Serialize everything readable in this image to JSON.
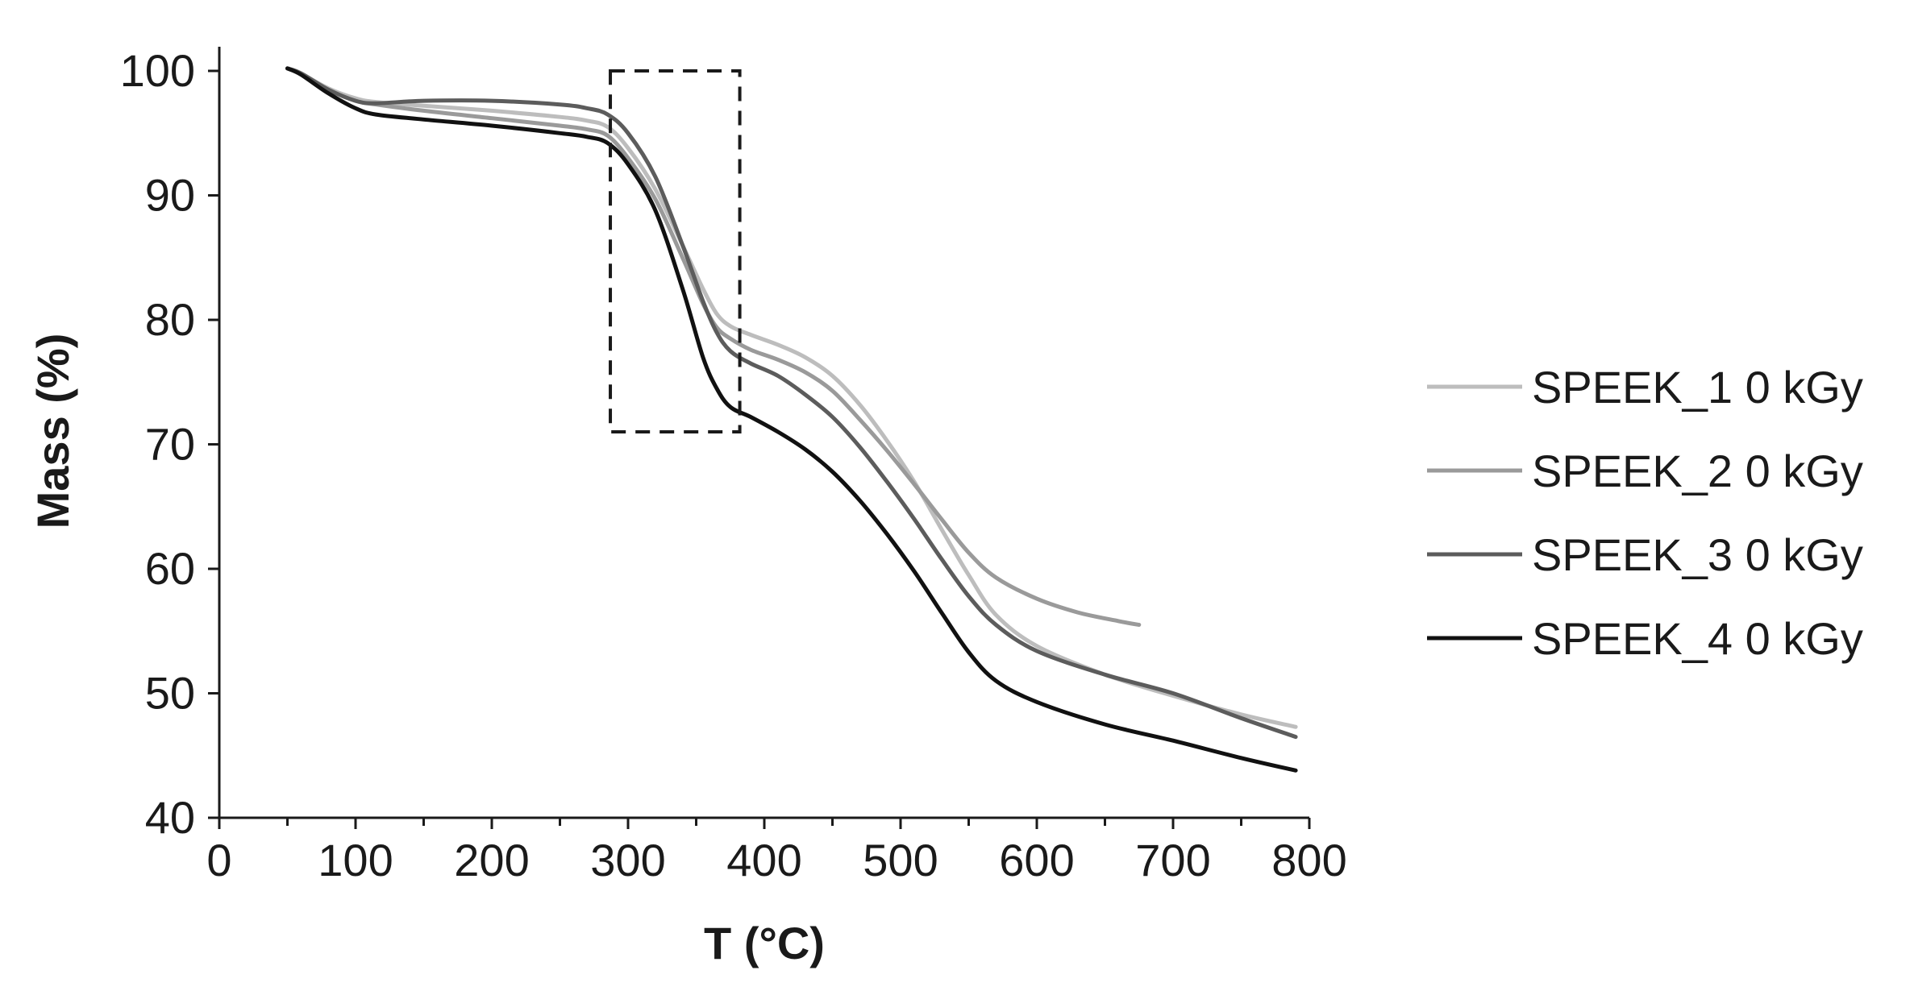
{
  "chart_data": {
    "type": "line",
    "title": "",
    "xlabel": "T (°C)",
    "ylabel": "Mass (%)",
    "xlim": [
      0,
      800
    ],
    "ylim": [
      40,
      100
    ],
    "xticks": [
      0,
      100,
      200,
      300,
      400,
      500,
      600,
      700,
      800
    ],
    "yticks": [
      40,
      50,
      60,
      70,
      80,
      90,
      100
    ],
    "grid": false,
    "legend_position": "right",
    "highlight_box": {
      "x_range": [
        287,
        382
      ],
      "y_range": [
        71,
        100
      ],
      "style": "dashed"
    },
    "series": [
      {
        "name": "SPEEK_1 0 kGy",
        "color": "#bdbdbd",
        "x": [
          50,
          60,
          80,
          100,
          115,
          150,
          200,
          250,
          270,
          285,
          300,
          320,
          340,
          355,
          365,
          375,
          390,
          410,
          430,
          450,
          470,
          490,
          510,
          530,
          550,
          570,
          600,
          650,
          700,
          750,
          790
        ],
        "y": [
          100.2,
          99.8,
          98.6,
          97.8,
          97.5,
          97.2,
          96.8,
          96.3,
          96.0,
          95.5,
          93.8,
          90.5,
          86.0,
          82.5,
          80.5,
          79.5,
          78.8,
          78.0,
          77.0,
          75.5,
          73.2,
          70.3,
          67.0,
          63.2,
          59.5,
          56.3,
          53.8,
          51.5,
          49.8,
          48.3,
          47.3
        ]
      },
      {
        "name": "SPEEK_2 0 kGy",
        "color": "#9a9a9a",
        "x": [
          50,
          60,
          80,
          100,
          115,
          150,
          200,
          250,
          270,
          285,
          300,
          320,
          340,
          355,
          365,
          375,
          390,
          410,
          430,
          450,
          470,
          490,
          510,
          530,
          550,
          570,
          600,
          630,
          660,
          675
        ],
        "y": [
          100.2,
          99.8,
          98.5,
          97.6,
          97.3,
          96.8,
          96.2,
          95.6,
          95.3,
          94.8,
          93.0,
          89.7,
          85.0,
          81.3,
          79.4,
          78.5,
          77.6,
          76.8,
          75.8,
          74.3,
          72.0,
          69.5,
          66.8,
          64.0,
          61.3,
          59.3,
          57.6,
          56.5,
          55.8,
          55.5
        ]
      },
      {
        "name": "SPEEK_3 0 kGy",
        "color": "#5c5c5c",
        "x": [
          50,
          60,
          80,
          100,
          115,
          150,
          200,
          250,
          270,
          285,
          300,
          320,
          340,
          355,
          365,
          375,
          390,
          410,
          430,
          450,
          470,
          490,
          510,
          530,
          550,
          570,
          600,
          650,
          700,
          750,
          790
        ],
        "y": [
          100.2,
          99.8,
          98.5,
          97.6,
          97.4,
          97.6,
          97.6,
          97.3,
          97.0,
          96.5,
          95.0,
          91.5,
          86.0,
          81.5,
          79.0,
          77.5,
          76.5,
          75.5,
          74.0,
          72.2,
          69.8,
          67.0,
          64.0,
          60.8,
          57.8,
          55.5,
          53.4,
          51.5,
          50.0,
          48.0,
          46.5
        ]
      },
      {
        "name": "SPEEK_4 0 kGy",
        "color": "#111111",
        "x": [
          50,
          60,
          80,
          100,
          115,
          150,
          200,
          250,
          270,
          285,
          300,
          320,
          340,
          355,
          365,
          375,
          390,
          410,
          430,
          450,
          470,
          490,
          510,
          530,
          550,
          570,
          600,
          650,
          700,
          750,
          790
        ],
        "y": [
          100.2,
          99.7,
          98.2,
          97.0,
          96.5,
          96.1,
          95.6,
          95.0,
          94.7,
          94.2,
          92.5,
          88.8,
          82.5,
          77.0,
          74.5,
          73.0,
          72.2,
          71.0,
          69.6,
          67.8,
          65.5,
          62.8,
          59.8,
          56.5,
          53.3,
          51.0,
          49.3,
          47.5,
          46.2,
          44.8,
          43.8
        ]
      }
    ]
  }
}
